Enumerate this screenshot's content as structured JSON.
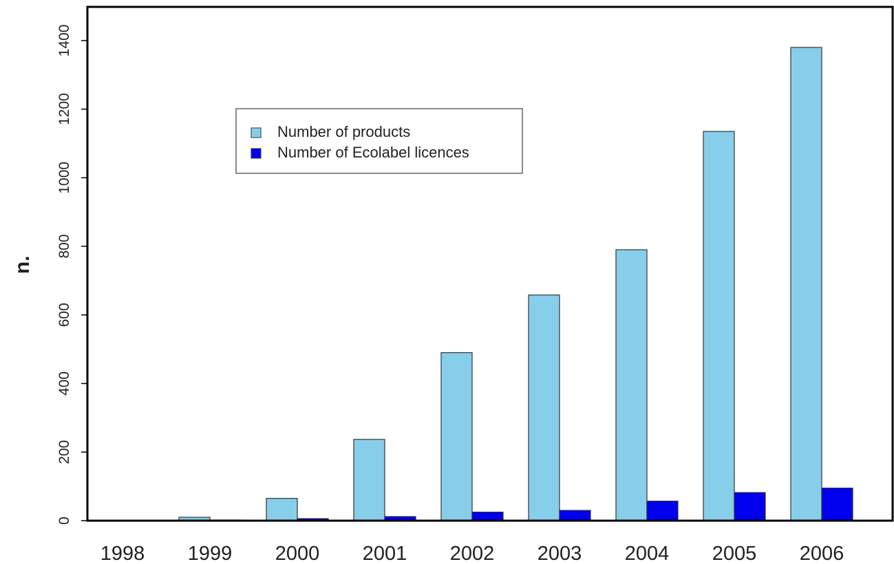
{
  "chart_data": {
    "type": "bar",
    "title": "",
    "xlabel": "",
    "ylabel": "n.",
    "categories": [
      "1998",
      "1999",
      "2000",
      "2001",
      "2002",
      "2003",
      "2004",
      "2005",
      "2006"
    ],
    "series": [
      {
        "name": "Number of products",
        "color": "#87CEEB",
        "values": [
          1,
          10,
          65,
          237,
          490,
          658,
          790,
          1135,
          1380
        ]
      },
      {
        "name": "Number of Ecolabel licences",
        "color": "#0000EE",
        "values": [
          1,
          2,
          6,
          12,
          25,
          30,
          57,
          82,
          95
        ]
      }
    ],
    "ylim": [
      0,
      1500
    ],
    "yticks": [
      0,
      200,
      400,
      600,
      800,
      1000,
      1200,
      1400
    ],
    "grid": false,
    "legend_position": "top-left"
  }
}
